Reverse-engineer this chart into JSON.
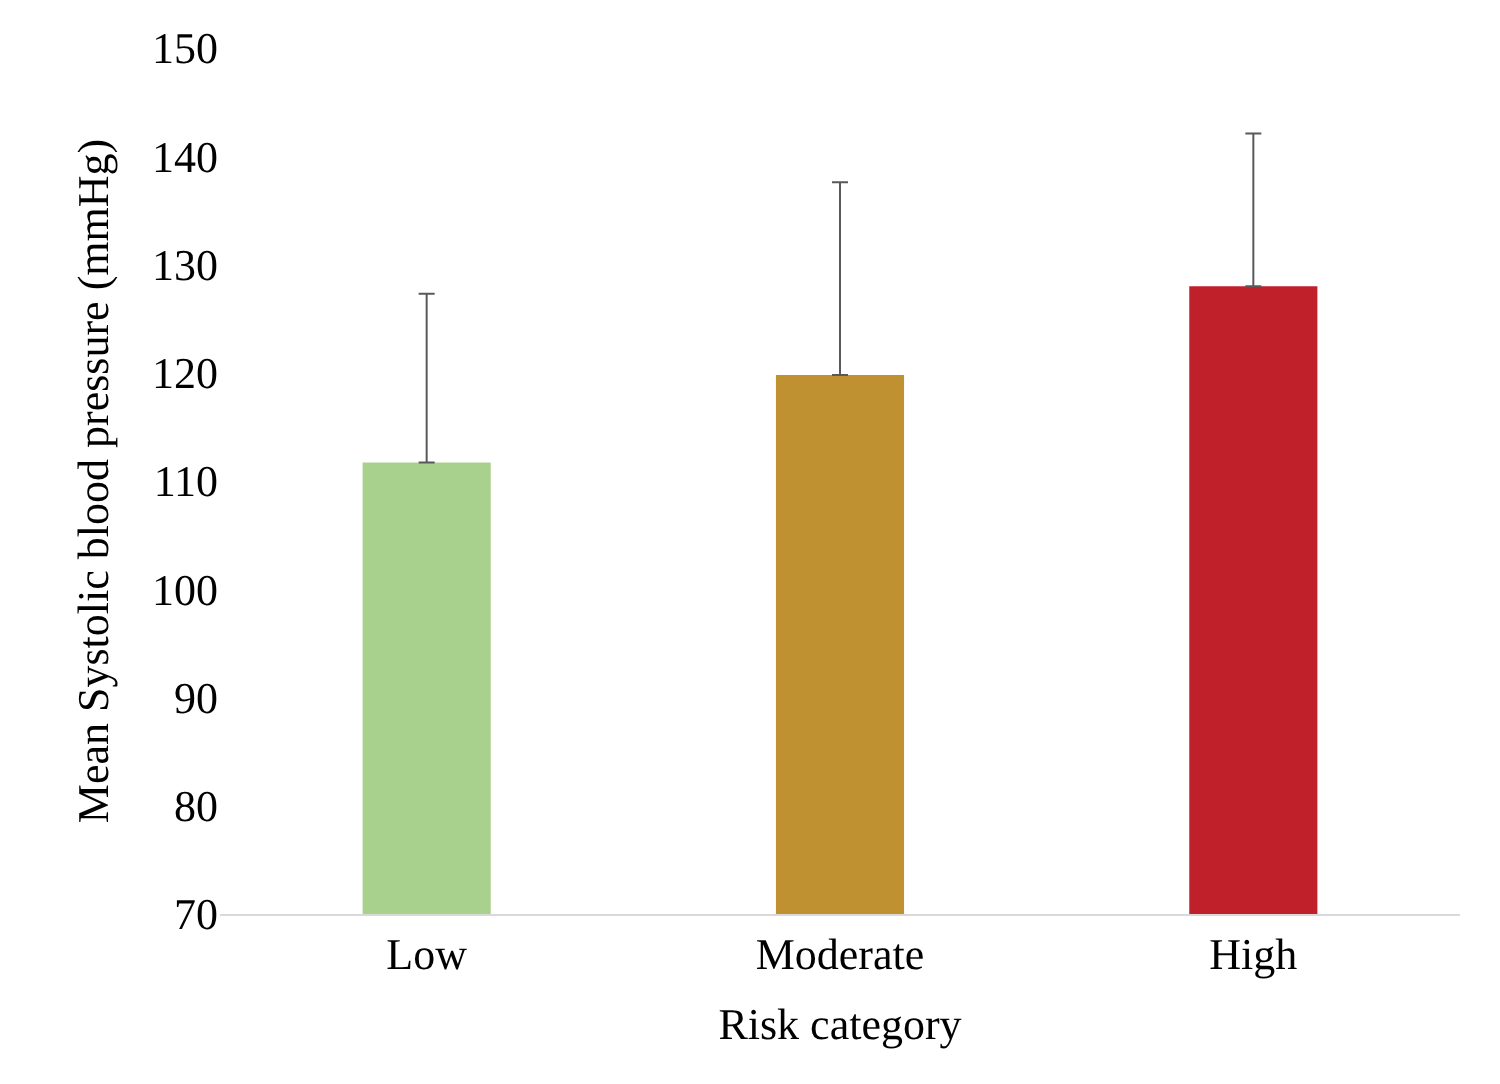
{
  "chart_data": {
    "type": "bar",
    "xlabel": "Risk category",
    "ylabel": "Mean Systolic blood pressure (mmHg)",
    "categories": [
      "Low",
      "Moderate",
      "High"
    ],
    "values": [
      111.7,
      119.8,
      128.0
    ],
    "colors": [
      "#a9d18e",
      "#bf9130",
      "#c0202a"
    ],
    "errors": [
      [
        111.7,
        127.3
      ],
      [
        119.8,
        137.6
      ],
      [
        128.0,
        142.1
      ]
    ],
    "ylim": [
      70,
      150
    ],
    "yticks": [
      70,
      80,
      90,
      100,
      110,
      120,
      130,
      140,
      150
    ]
  }
}
